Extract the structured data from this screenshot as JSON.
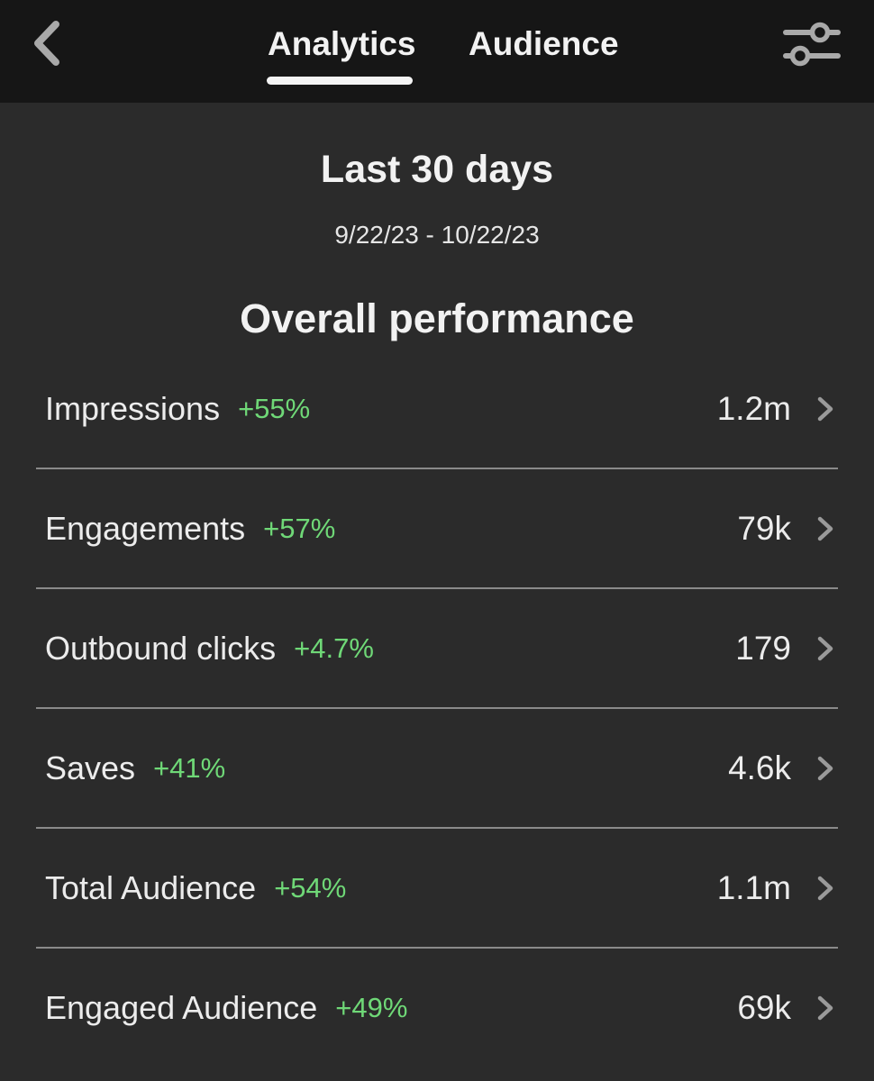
{
  "header": {
    "back_icon": "chevron-left-icon",
    "tabs": [
      {
        "label": "Analytics",
        "active": true
      },
      {
        "label": "Audience",
        "active": false
      }
    ],
    "filter_icon": "sliders-icon"
  },
  "period": {
    "title": "Last 30 days",
    "date_range": "9/22/23 - 10/22/23"
  },
  "section": {
    "title": "Overall performance"
  },
  "metrics": [
    {
      "label": "Impressions",
      "change": "+55%",
      "value": "1.2m"
    },
    {
      "label": "Engagements",
      "change": "+57%",
      "value": "79k"
    },
    {
      "label": "Outbound clicks",
      "change": "+4.7%",
      "value": "179"
    },
    {
      "label": "Saves",
      "change": "+41%",
      "value": "4.6k"
    },
    {
      "label": "Total Audience",
      "change": "+54%",
      "value": "1.1m"
    },
    {
      "label": "Engaged Audience",
      "change": "+49%",
      "value": "69k"
    }
  ],
  "colors": {
    "background": "#2b2b2b",
    "header_background": "#161616",
    "positive_change": "#6fd877",
    "divider": "#8a8a8a"
  }
}
